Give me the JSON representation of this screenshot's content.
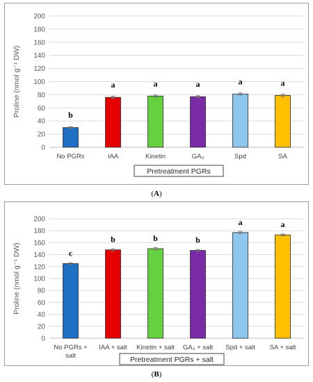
{
  "chart_data": [
    {
      "type": "bar",
      "panel_label": "A",
      "caption_text": "(A)",
      "ylabel": "Proline (nmol g⁻¹ DW)",
      "xlabel": "Pretreatment PGRs",
      "ylim": [
        0,
        200
      ],
      "yticks": [
        0,
        20,
        40,
        60,
        80,
        100,
        120,
        140,
        160,
        180,
        200
      ],
      "categories": [
        "No PGRs",
        "IAA",
        "Kinetin",
        "GA₃",
        "Spd",
        "SA"
      ],
      "values": [
        30,
        76,
        78,
        77,
        81,
        79
      ],
      "errors": [
        1.5,
        1.8,
        1.6,
        1.5,
        1.8,
        2.0
      ],
      "significance_letters": [
        "b",
        "a",
        "a",
        "a",
        "a",
        "a"
      ],
      "colors": [
        "#1f6fc5",
        "#e60000",
        "#66d13f",
        "#7a2ca6",
        "#8ec6ee",
        "#ffc000"
      ],
      "grid": true
    },
    {
      "type": "bar",
      "panel_label": "B",
      "caption_text": "(B)",
      "ylabel": "Proline (nmol g⁻¹ DW)",
      "xlabel": "Pretreatment  PGRs + salt",
      "ylim": [
        0,
        200
      ],
      "yticks": [
        0,
        20,
        40,
        60,
        80,
        100,
        120,
        140,
        160,
        180,
        200
      ],
      "categories": [
        [
          "No PGRs +",
          "salt"
        ],
        [
          "IAA + salt"
        ],
        [
          "Kinetin + salt"
        ],
        [
          "GA₃ + salt"
        ],
        [
          "Spd + salt"
        ],
        [
          "SA + salt"
        ]
      ],
      "values": [
        125,
        148,
        150,
        147,
        177,
        173
      ],
      "errors": [
        1.5,
        1.5,
        2.0,
        1.5,
        2.0,
        1.5
      ],
      "significance_letters": [
        "c",
        "b",
        "b",
        "b",
        "a",
        "a"
      ],
      "colors": [
        "#1f6fc5",
        "#e60000",
        "#66d13f",
        "#7a2ca6",
        "#8ec6ee",
        "#ffc000"
      ],
      "grid": true
    }
  ]
}
